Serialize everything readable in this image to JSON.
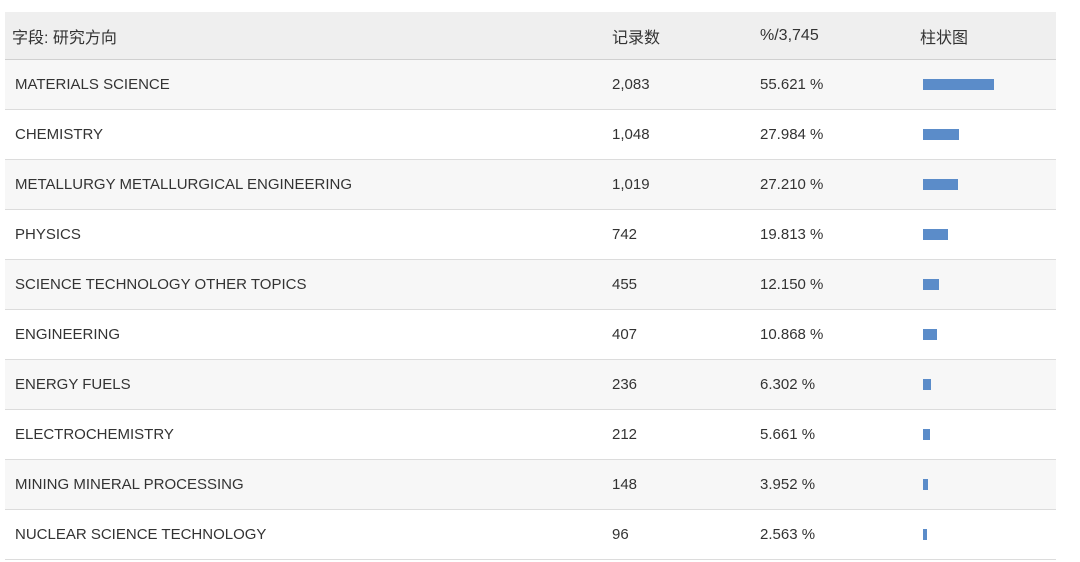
{
  "header": {
    "field": "字段: 研究方向",
    "count": "记录数",
    "percent": "%/3,745",
    "bar": "柱状图"
  },
  "colors": {
    "bar": "#5b8cc9"
  },
  "rows": [
    {
      "name": "MATERIALS SCIENCE",
      "count": "2,083",
      "percent": "55.621 %",
      "fraction": 0.55621
    },
    {
      "name": "CHEMISTRY",
      "count": "1,048",
      "percent": "27.984 %",
      "fraction": 0.27984
    },
    {
      "name": "METALLURGY METALLURGICAL ENGINEERING",
      "count": "1,019",
      "percent": "27.210 %",
      "fraction": 0.2721
    },
    {
      "name": "PHYSICS",
      "count": "742",
      "percent": "19.813 %",
      "fraction": 0.19813
    },
    {
      "name": "SCIENCE TECHNOLOGY OTHER TOPICS",
      "count": "455",
      "percent": "12.150 %",
      "fraction": 0.1215
    },
    {
      "name": "ENGINEERING",
      "count": "407",
      "percent": "10.868 %",
      "fraction": 0.10868
    },
    {
      "name": "ENERGY FUELS",
      "count": "236",
      "percent": "6.302 %",
      "fraction": 0.06302
    },
    {
      "name": "ELECTROCHEMISTRY",
      "count": "212",
      "percent": "5.661 %",
      "fraction": 0.05661
    },
    {
      "name": "MINING MINERAL PROCESSING",
      "count": "148",
      "percent": "3.952 %",
      "fraction": 0.03952
    },
    {
      "name": "NUCLEAR SCIENCE TECHNOLOGY",
      "count": "96",
      "percent": "2.563 %",
      "fraction": 0.02563
    }
  ]
}
